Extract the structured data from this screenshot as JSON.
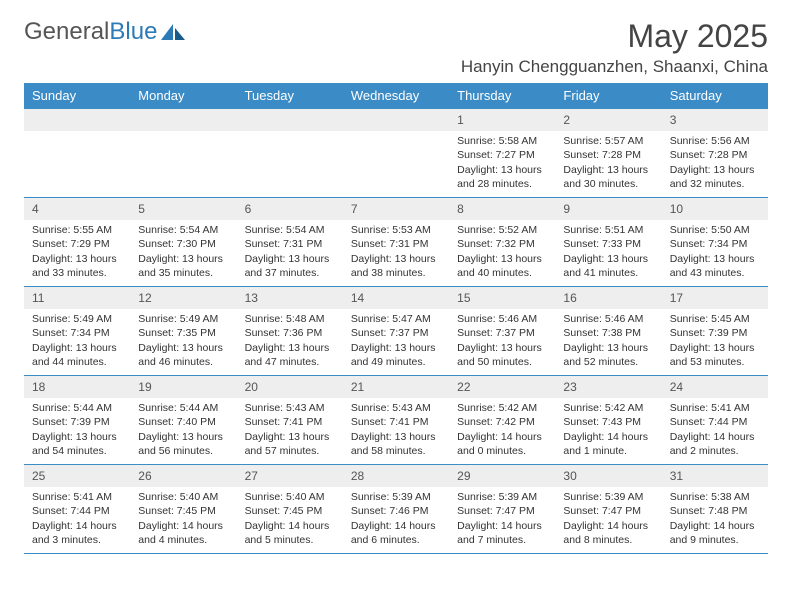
{
  "logo": {
    "word1": "General",
    "word2": "Blue"
  },
  "header": {
    "month_title": "May 2025",
    "location": "Hanyin Chengguanzhen, Shaanxi, China"
  },
  "colors": {
    "header_bg": "#3b8bc6",
    "header_text": "#ffffff",
    "daynum_bg": "#eeeeee",
    "border": "#3b8bc6",
    "body_text": "#333333",
    "logo_gray": "#555555",
    "logo_blue": "#2c7bb6"
  },
  "weekdays": [
    "Sunday",
    "Monday",
    "Tuesday",
    "Wednesday",
    "Thursday",
    "Friday",
    "Saturday"
  ],
  "weeks": [
    [
      null,
      null,
      null,
      null,
      {
        "n": "1",
        "sr": "5:58 AM",
        "ss": "7:27 PM",
        "dl": "13 hours and 28 minutes."
      },
      {
        "n": "2",
        "sr": "5:57 AM",
        "ss": "7:28 PM",
        "dl": "13 hours and 30 minutes."
      },
      {
        "n": "3",
        "sr": "5:56 AM",
        "ss": "7:28 PM",
        "dl": "13 hours and 32 minutes."
      }
    ],
    [
      {
        "n": "4",
        "sr": "5:55 AM",
        "ss": "7:29 PM",
        "dl": "13 hours and 33 minutes."
      },
      {
        "n": "5",
        "sr": "5:54 AM",
        "ss": "7:30 PM",
        "dl": "13 hours and 35 minutes."
      },
      {
        "n": "6",
        "sr": "5:54 AM",
        "ss": "7:31 PM",
        "dl": "13 hours and 37 minutes."
      },
      {
        "n": "7",
        "sr": "5:53 AM",
        "ss": "7:31 PM",
        "dl": "13 hours and 38 minutes."
      },
      {
        "n": "8",
        "sr": "5:52 AM",
        "ss": "7:32 PM",
        "dl": "13 hours and 40 minutes."
      },
      {
        "n": "9",
        "sr": "5:51 AM",
        "ss": "7:33 PM",
        "dl": "13 hours and 41 minutes."
      },
      {
        "n": "10",
        "sr": "5:50 AM",
        "ss": "7:34 PM",
        "dl": "13 hours and 43 minutes."
      }
    ],
    [
      {
        "n": "11",
        "sr": "5:49 AM",
        "ss": "7:34 PM",
        "dl": "13 hours and 44 minutes."
      },
      {
        "n": "12",
        "sr": "5:49 AM",
        "ss": "7:35 PM",
        "dl": "13 hours and 46 minutes."
      },
      {
        "n": "13",
        "sr": "5:48 AM",
        "ss": "7:36 PM",
        "dl": "13 hours and 47 minutes."
      },
      {
        "n": "14",
        "sr": "5:47 AM",
        "ss": "7:37 PM",
        "dl": "13 hours and 49 minutes."
      },
      {
        "n": "15",
        "sr": "5:46 AM",
        "ss": "7:37 PM",
        "dl": "13 hours and 50 minutes."
      },
      {
        "n": "16",
        "sr": "5:46 AM",
        "ss": "7:38 PM",
        "dl": "13 hours and 52 minutes."
      },
      {
        "n": "17",
        "sr": "5:45 AM",
        "ss": "7:39 PM",
        "dl": "13 hours and 53 minutes."
      }
    ],
    [
      {
        "n": "18",
        "sr": "5:44 AM",
        "ss": "7:39 PM",
        "dl": "13 hours and 54 minutes."
      },
      {
        "n": "19",
        "sr": "5:44 AM",
        "ss": "7:40 PM",
        "dl": "13 hours and 56 minutes."
      },
      {
        "n": "20",
        "sr": "5:43 AM",
        "ss": "7:41 PM",
        "dl": "13 hours and 57 minutes."
      },
      {
        "n": "21",
        "sr": "5:43 AM",
        "ss": "7:41 PM",
        "dl": "13 hours and 58 minutes."
      },
      {
        "n": "22",
        "sr": "5:42 AM",
        "ss": "7:42 PM",
        "dl": "14 hours and 0 minutes."
      },
      {
        "n": "23",
        "sr": "5:42 AM",
        "ss": "7:43 PM",
        "dl": "14 hours and 1 minute."
      },
      {
        "n": "24",
        "sr": "5:41 AM",
        "ss": "7:44 PM",
        "dl": "14 hours and 2 minutes."
      }
    ],
    [
      {
        "n": "25",
        "sr": "5:41 AM",
        "ss": "7:44 PM",
        "dl": "14 hours and 3 minutes."
      },
      {
        "n": "26",
        "sr": "5:40 AM",
        "ss": "7:45 PM",
        "dl": "14 hours and 4 minutes."
      },
      {
        "n": "27",
        "sr": "5:40 AM",
        "ss": "7:45 PM",
        "dl": "14 hours and 5 minutes."
      },
      {
        "n": "28",
        "sr": "5:39 AM",
        "ss": "7:46 PM",
        "dl": "14 hours and 6 minutes."
      },
      {
        "n": "29",
        "sr": "5:39 AM",
        "ss": "7:47 PM",
        "dl": "14 hours and 7 minutes."
      },
      {
        "n": "30",
        "sr": "5:39 AM",
        "ss": "7:47 PM",
        "dl": "14 hours and 8 minutes."
      },
      {
        "n": "31",
        "sr": "5:38 AM",
        "ss": "7:48 PM",
        "dl": "14 hours and 9 minutes."
      }
    ]
  ],
  "labels": {
    "sunrise": "Sunrise:",
    "sunset": "Sunset:",
    "daylight": "Daylight:"
  }
}
